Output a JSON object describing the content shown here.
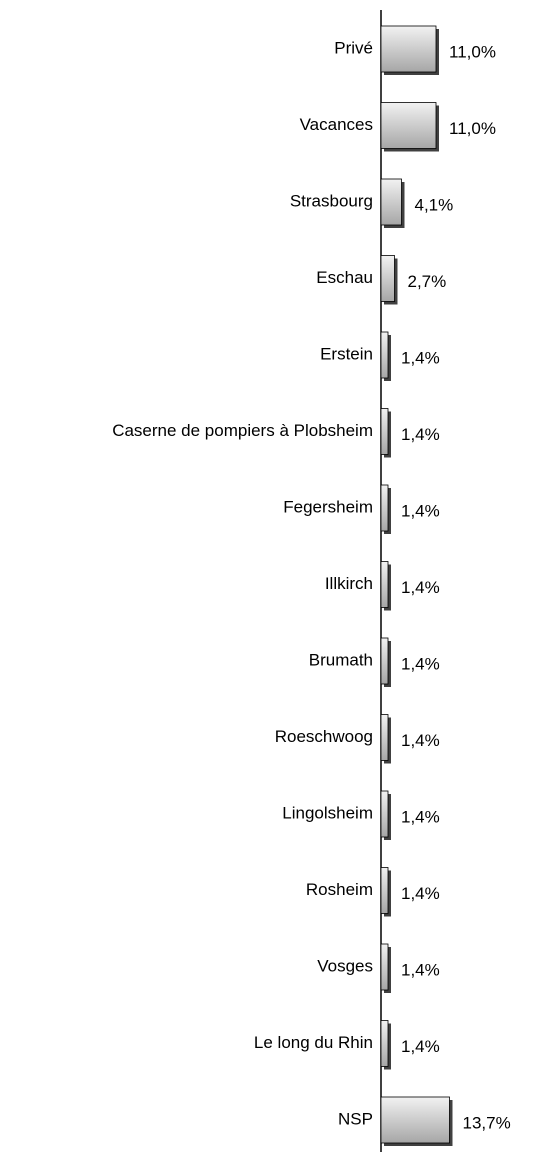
{
  "chart_data": {
    "type": "barh",
    "categories": [
      "Privé",
      "Vacances",
      "Strasbourg",
      "Eschau",
      "Erstein",
      "Caserne de pompiers à Plobsheim",
      "Fegersheim",
      "Illkirch",
      "Brumath",
      "Roeschwoog",
      "Lingolsheim",
      "Rosheim",
      "Vosges",
      "Le long du Rhin",
      "NSP"
    ],
    "values": [
      11.0,
      11.0,
      4.1,
      2.7,
      1.4,
      1.4,
      1.4,
      1.4,
      1.4,
      1.4,
      1.4,
      1.4,
      1.4,
      1.4,
      13.7
    ],
    "value_labels": [
      "11,0%",
      "11,0%",
      "4,1%",
      "2,7%",
      "1,4%",
      "1,4%",
      "1,4%",
      "1,4%",
      "1,4%",
      "1,4%",
      "1,4%",
      "1,4%",
      "1,4%",
      "1,4%",
      "13,7%"
    ],
    "color": "#c0c0c0"
  }
}
